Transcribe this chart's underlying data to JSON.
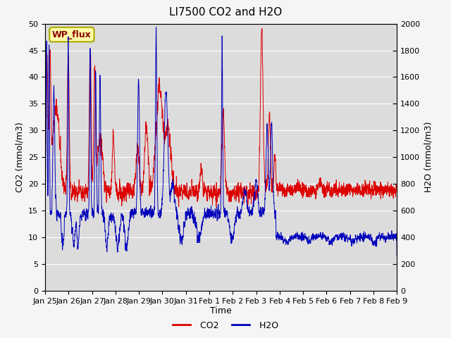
{
  "title": "LI7500 CO2 and H2O",
  "xlabel": "Time",
  "ylabel_left": "CO2 (mmol/m3)",
  "ylabel_right": "H2O (mmol/m3)",
  "annotation": "WP_flux",
  "co2_ylim": [
    0,
    50
  ],
  "h2o_ylim": [
    0,
    2000
  ],
  "plot_bg_color": "#dcdcdc",
  "fig_bg_color": "#f5f5f5",
  "co2_color": "#dd0000",
  "h2o_color": "#0000bb",
  "xtick_labels": [
    "Jan 25",
    "Jan 26",
    "Jan 27",
    "Jan 28",
    "Jan 29",
    "Jan 30",
    "Jan 31",
    "Feb 1",
    "Feb 2",
    "Feb 3",
    "Feb 4",
    "Feb 5",
    "Feb 6",
    "Feb 7",
    "Feb 8",
    "Feb 9"
  ],
  "title_fontsize": 11,
  "axis_label_fontsize": 9,
  "tick_fontsize": 8
}
